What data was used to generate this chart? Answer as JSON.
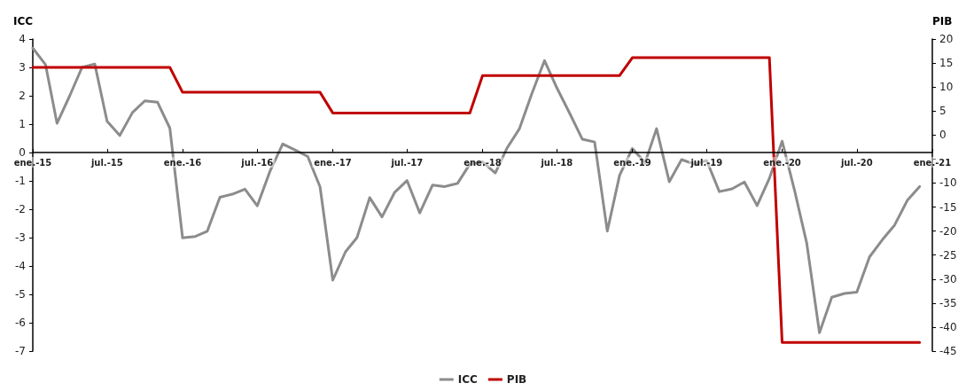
{
  "chart_data": {
    "type": "line",
    "ylabel": "ICC",
    "y2label": "PIB",
    "x": [
      "2015-01",
      "2015-02",
      "2015-03",
      "2015-04",
      "2015-05",
      "2015-06",
      "2015-07",
      "2015-08",
      "2015-09",
      "2015-10",
      "2015-11",
      "2015-12",
      "2016-01",
      "2016-02",
      "2016-03",
      "2016-04",
      "2016-05",
      "2016-06",
      "2016-07",
      "2016-08",
      "2016-09",
      "2016-10",
      "2016-11",
      "2016-12",
      "2017-01",
      "2017-02",
      "2017-03",
      "2017-04",
      "2017-05",
      "2017-06",
      "2017-07",
      "2017-08",
      "2017-09",
      "2017-10",
      "2017-11",
      "2017-12",
      "2018-01",
      "2018-02",
      "2018-03",
      "2018-04",
      "2018-05",
      "2018-06",
      "2018-07",
      "2018-08",
      "2018-09",
      "2018-10",
      "2018-11",
      "2018-12",
      "2019-01",
      "2019-02",
      "2019-03",
      "2019-04",
      "2019-05",
      "2019-06",
      "2019-07",
      "2019-08",
      "2019-09",
      "2019-10",
      "2019-11",
      "2019-12",
      "2020-01",
      "2020-02",
      "2020-03",
      "2020-04",
      "2020-05",
      "2020-06",
      "2020-07",
      "2020-08",
      "2020-09",
      "2020-10",
      "2020-11",
      "2020-12"
    ],
    "series": [
      {
        "name": "ICC",
        "color": "#8c8c8c",
        "values": [
          3.68,
          3.1,
          1.03,
          2.0,
          3.0,
          3.12,
          1.1,
          0.6,
          1.41,
          1.82,
          1.77,
          0.86,
          -3.01,
          -2.96,
          -2.78,
          -1.58,
          -1.47,
          -1.29,
          -1.88,
          -0.66,
          0.3,
          0.09,
          -0.14,
          -1.21,
          -4.5,
          -3.5,
          -3.0,
          -1.59,
          -2.27,
          -1.4,
          -0.99,
          -2.13,
          -1.15,
          -1.2,
          -1.09,
          -0.41,
          -0.33,
          -0.72,
          0.14,
          0.84,
          2.07,
          3.24,
          2.28,
          1.39,
          0.47,
          0.37,
          -2.77,
          -0.8,
          0.14,
          -0.36,
          0.84,
          -1.03,
          -0.25,
          -0.41,
          -0.28,
          -1.38,
          -1.28,
          -1.04,
          -1.87,
          -0.91,
          0.4,
          -1.38,
          -3.2,
          -6.35,
          -5.1,
          -4.97,
          -4.92,
          -3.68,
          -3.08,
          -2.56,
          -1.69,
          -1.2
        ]
      },
      {
        "name": "PIB",
        "color": "#c00000",
        "axis": "y2",
        "values": [
          14.1,
          14.1,
          14.1,
          14.1,
          14.1,
          14.1,
          14.1,
          14.1,
          14.1,
          14.1,
          14.1,
          14.1,
          8.9,
          8.9,
          8.9,
          8.9,
          8.9,
          8.9,
          8.9,
          8.9,
          8.9,
          8.9,
          8.9,
          8.9,
          4.6,
          4.6,
          4.6,
          4.6,
          4.6,
          4.6,
          4.6,
          4.6,
          4.6,
          4.6,
          4.6,
          4.6,
          12.4,
          12.4,
          12.4,
          12.4,
          12.4,
          12.4,
          12.4,
          12.4,
          12.4,
          12.4,
          12.4,
          12.4,
          16.1,
          16.1,
          16.1,
          16.1,
          16.1,
          16.1,
          16.1,
          16.1,
          16.1,
          16.1,
          16.1,
          16.1,
          -43.2,
          -43.2,
          -43.2,
          -43.2,
          -43.2,
          -43.2,
          -43.2,
          -43.2,
          -43.2,
          -43.2,
          -43.2,
          -43.2
        ]
      }
    ],
    "xlim": [
      "2015-01",
      "2021-01"
    ],
    "xticks": [
      {
        "value": "2015-01",
        "label": "ene.-15"
      },
      {
        "value": "2015-07",
        "label": "jul.-15"
      },
      {
        "value": "2016-01",
        "label": "ene.-16"
      },
      {
        "value": "2016-07",
        "label": "jul.-16"
      },
      {
        "value": "2017-01",
        "label": "ene.-17"
      },
      {
        "value": "2017-07",
        "label": "jul.-17"
      },
      {
        "value": "2018-01",
        "label": "ene.-18"
      },
      {
        "value": "2018-07",
        "label": "jul.-18"
      },
      {
        "value": "2019-01",
        "label": "ene.-19"
      },
      {
        "value": "2019-07",
        "label": "jul.-19"
      },
      {
        "value": "2020-01",
        "label": "ene.-20"
      },
      {
        "value": "2020-07",
        "label": "jul.-20"
      },
      {
        "value": "2021-01",
        "label": "ene.-21"
      }
    ],
    "ylim": [
      -7,
      4
    ],
    "yticks": [
      -7,
      -6,
      -5,
      -4,
      -3,
      -2,
      -1,
      0,
      1,
      2,
      3,
      4
    ],
    "y2lim": [
      -45,
      20
    ],
    "y2ticks": [
      -45,
      -40,
      -35,
      -30,
      -25,
      -20,
      -15,
      -10,
      {
        "value": -5,
        "label": null
      },
      0,
      5,
      10,
      15,
      20
    ],
    "grid": false,
    "legend": "bottom",
    "marker": "none",
    "line_style": "solid"
  }
}
